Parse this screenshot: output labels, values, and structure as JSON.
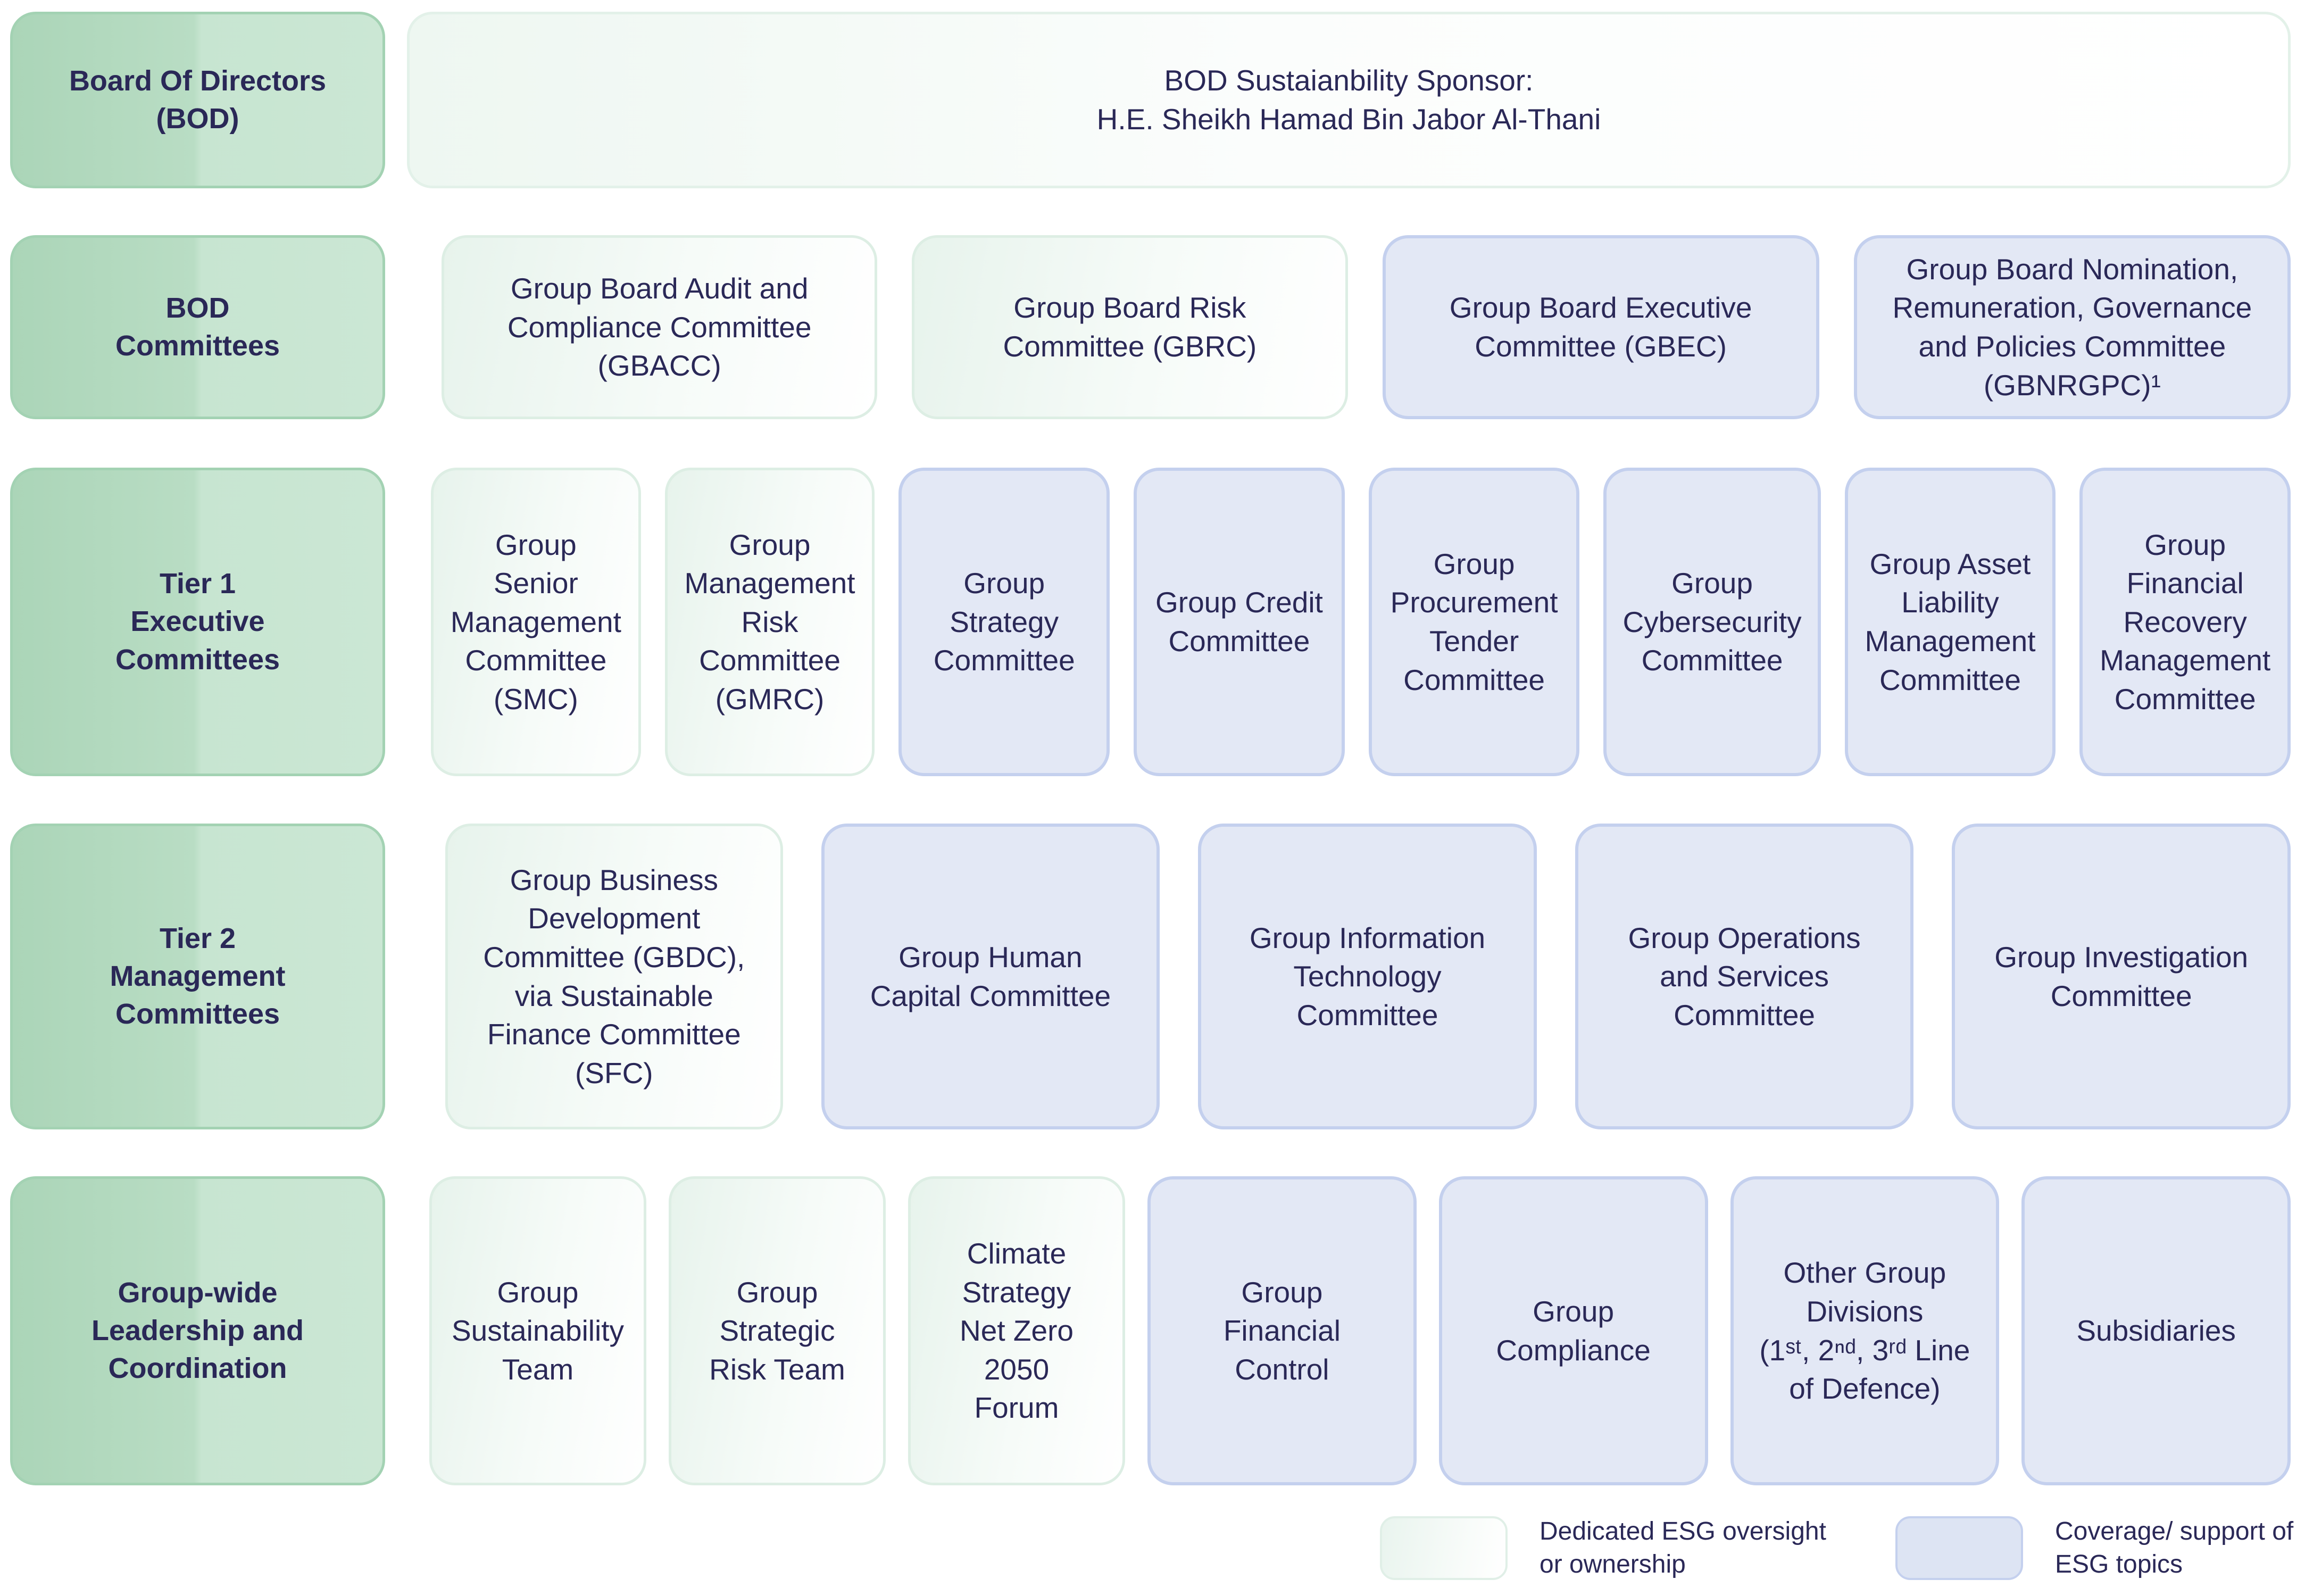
{
  "palette": {
    "text_navy": "#2a2857",
    "label_green_from": "#abd5b8",
    "label_green_to": "#cbe7d4",
    "esg_green_from": "#e7f3ec",
    "esg_green_to": "#ffffff",
    "esg_green_border": "#ddeee4",
    "coverage_lavender_fill": "#e3e8f5",
    "coverage_lavender_border": "#c4d0ee"
  },
  "rows": [
    {
      "label": "Board Of Directors\n(BOD)",
      "items": [
        {
          "text": "BOD Sustaianbility Sponsor:\nH.E. Sheikh Hamad Bin Jabor Al-Thani",
          "style": "green"
        }
      ]
    },
    {
      "label": "BOD\nCommittees",
      "items": [
        {
          "text": "Group Board Audit and\nCompliance Committee\n(GBACC)",
          "style": "green"
        },
        {
          "text": "Group Board Risk\nCommittee (GBRC)",
          "style": "green"
        },
        {
          "text": "Group Board Executive\nCommittee (GBEC)",
          "style": "lavender"
        },
        {
          "text": "Group Board Nomination,\nRemuneration, Governance\nand Policies Committee\n(GBNRGPC)¹",
          "style": "lavender"
        }
      ]
    },
    {
      "label": "Tier 1\nExecutive\nCommittees",
      "items": [
        {
          "text": "Group Senior\nManagement\nCommittee\n(SMC)",
          "style": "green"
        },
        {
          "text": "Group\nManagement\nRisk\nCommittee\n(GMRC)",
          "style": "green"
        },
        {
          "text": "Group\nStrategy\nCommittee",
          "style": "lavender"
        },
        {
          "text": "Group Credit\nCommittee",
          "style": "lavender"
        },
        {
          "text": "Group\nProcurement\nTender\nCommittee",
          "style": "lavender"
        },
        {
          "text": "Group\nCybersecurity\nCommittee",
          "style": "lavender"
        },
        {
          "text": "Group Asset\nLiability\nManagement\nCommittee",
          "style": "lavender"
        },
        {
          "text": "Group\nFinancial\nRecovery\nManagement\nCommittee",
          "style": "lavender"
        }
      ]
    },
    {
      "label": "Tier 2\nManagement\nCommittees",
      "items": [
        {
          "text": "Group Business\nDevelopment\nCommittee (GBDC),\nvia Sustainable\nFinance Committee\n(SFC)",
          "style": "green"
        },
        {
          "text": "Group Human\nCapital Committee",
          "style": "lavender"
        },
        {
          "text": "Group Information\nTechnology\nCommittee",
          "style": "lavender"
        },
        {
          "text": "Group Operations\nand Services\nCommittee",
          "style": "lavender"
        },
        {
          "text": "Group Investigation\nCommittee",
          "style": "lavender"
        }
      ]
    },
    {
      "label": "Group-wide\nLeadership and\nCoordination",
      "items": [
        {
          "text": "Group\nSustainability\nTeam",
          "style": "green"
        },
        {
          "text": "Group\nStrategic\nRisk Team",
          "style": "green"
        },
        {
          "text": "Climate\nStrategy\nNet Zero\n2050\nForum",
          "style": "green"
        },
        {
          "text": "Group\nFinancial\nControl",
          "style": "lavender"
        },
        {
          "text": "Group\nCompliance",
          "style": "lavender"
        },
        {
          "text": "Other Group\nDivisions\n(1ˢᵗ, 2ⁿᵈ, 3ʳᵈ Line\nof Defence)",
          "style": "lavender"
        },
        {
          "text": "Subsidiaries",
          "style": "lavender"
        }
      ]
    }
  ],
  "legend": {
    "green_label": "Dedicated ESG oversight\nor ownership",
    "lavender_label": "Coverage/ support of\nESG topics"
  }
}
